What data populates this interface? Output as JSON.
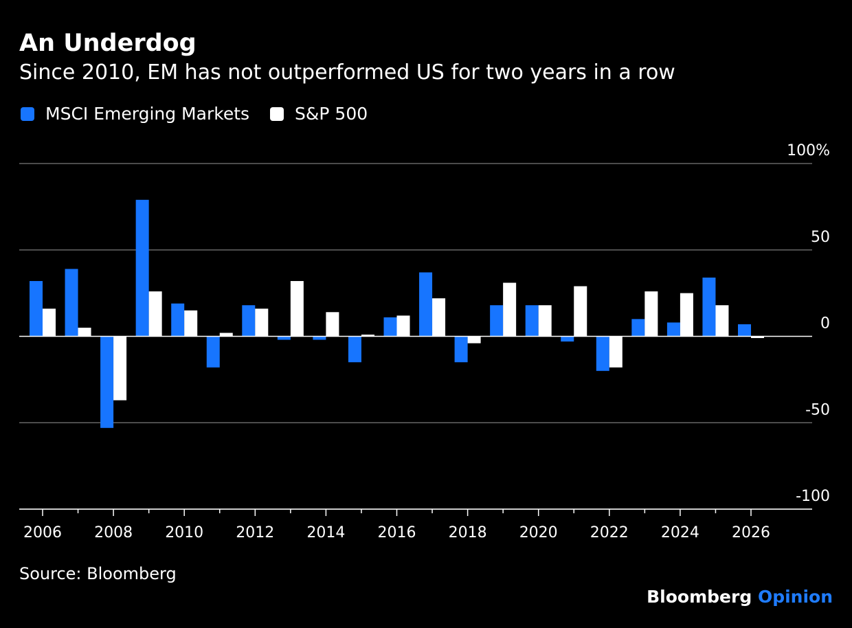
{
  "title": "An Underdog",
  "subtitle": "Since 2010, EM has not outperformed US for two years in a row",
  "source": "Source: Bloomberg",
  "brand": {
    "name": "Bloomberg",
    "suffix": "Opinion"
  },
  "colors": {
    "em": "#1775ff",
    "sp": "#ffffff",
    "grid": "#666666",
    "brand_accent": "#1f7cff"
  },
  "chart_data": {
    "type": "bar",
    "title": "An Underdog",
    "subtitle": "Since 2010, EM has not outperformed US for two years in a row",
    "categories": [
      "2006",
      "2007",
      "2008",
      "2009",
      "2010",
      "2011",
      "2012",
      "2013",
      "2014",
      "2015",
      "2016",
      "2017",
      "2018",
      "2019",
      "2020",
      "2021",
      "2022",
      "2023",
      "2024",
      "2025",
      "2026"
    ],
    "series": [
      {
        "name": "MSCI Emerging Markets",
        "color": "#1775ff",
        "values": [
          32,
          39,
          -53,
          79,
          19,
          -18,
          18,
          -2,
          -2,
          -15,
          11,
          37,
          -15,
          18,
          18,
          -3,
          -20,
          10,
          8,
          34,
          7
        ]
      },
      {
        "name": "S&P 500",
        "color": "#ffffff",
        "values": [
          16,
          5,
          -37,
          26,
          15,
          2,
          16,
          32,
          14,
          1,
          12,
          22,
          -4,
          31,
          18,
          29,
          -18,
          26,
          25,
          18,
          -1
        ]
      }
    ],
    "ylim": [
      -100,
      100
    ],
    "yticks": [
      100,
      50,
      0,
      -50,
      -100
    ],
    "ytick_labels": [
      "100%",
      "50",
      "0",
      "-50",
      "-100"
    ],
    "xticks": [
      "2006",
      "2008",
      "2010",
      "2012",
      "2014",
      "2016",
      "2018",
      "2020",
      "2022",
      "2024",
      "2026"
    ],
    "legend": "top-left",
    "grid": true
  }
}
